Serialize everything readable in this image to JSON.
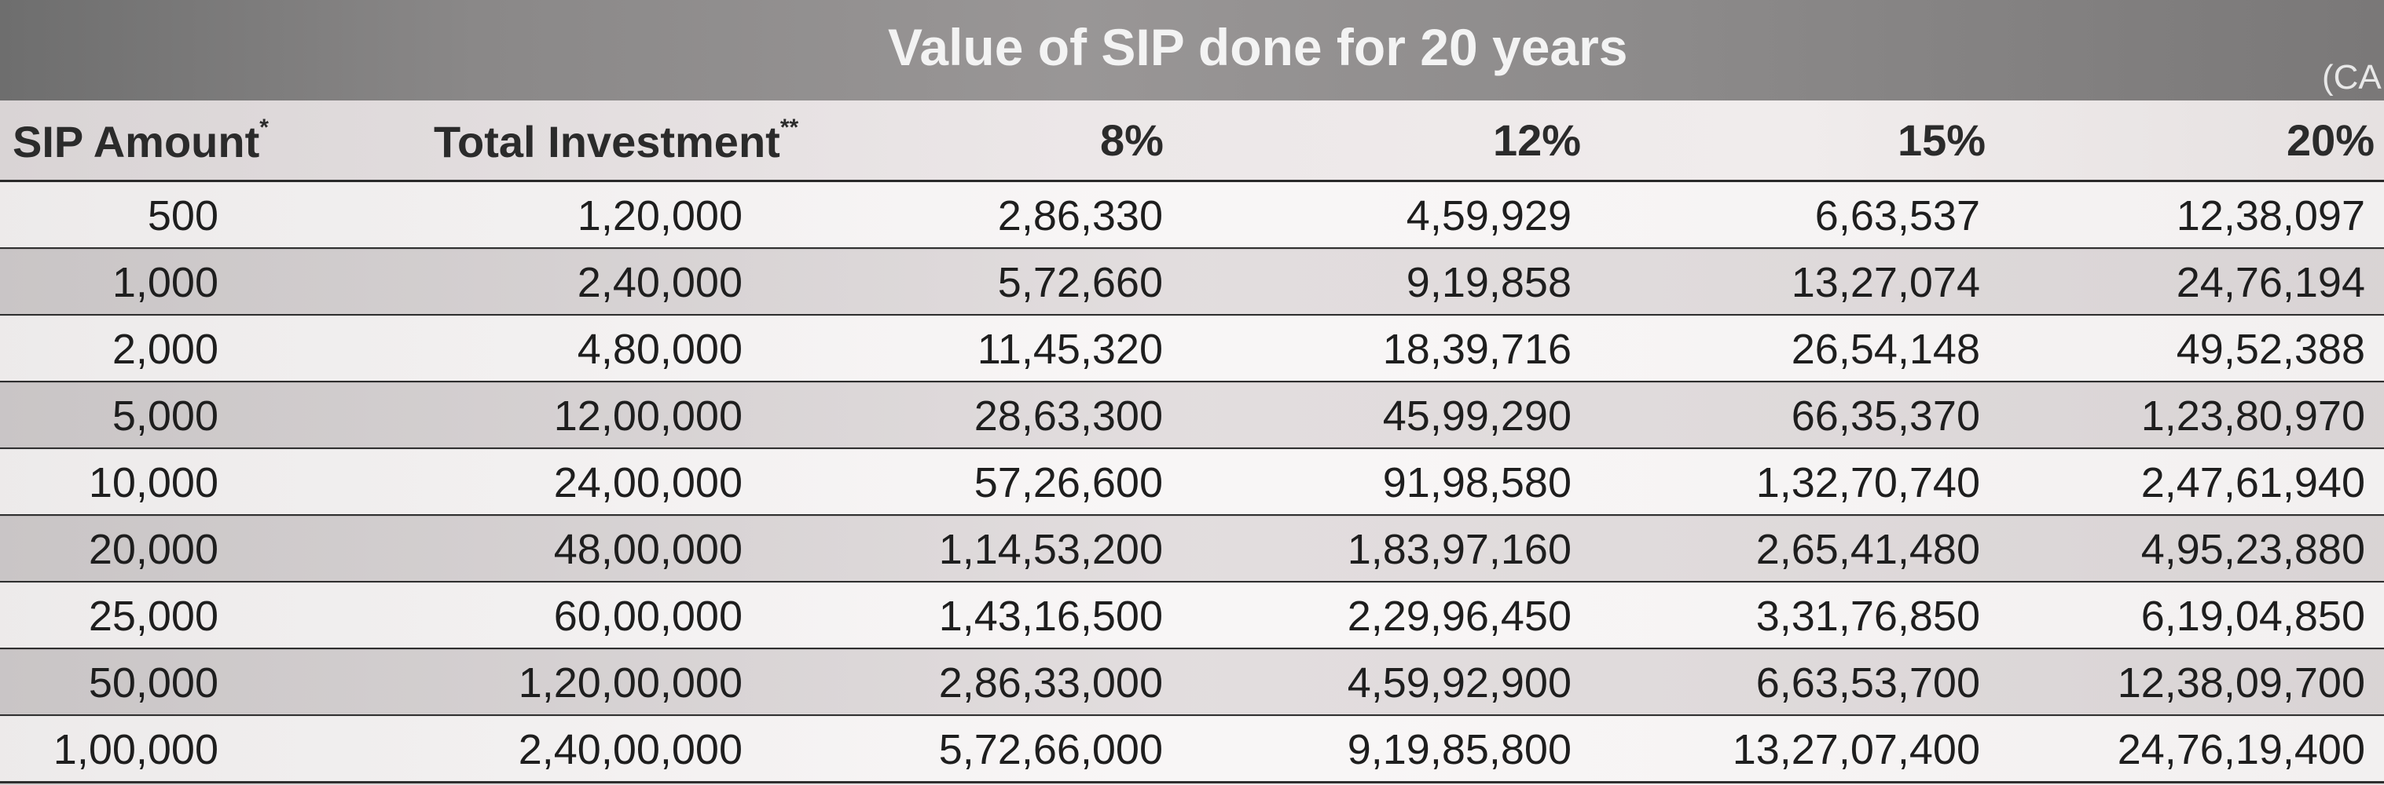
{
  "banner": {
    "title": "Value of SIP done for 20 years",
    "corner_text": "(CA"
  },
  "table": {
    "headers": [
      {
        "label": "SIP Amount",
        "mark": "*"
      },
      {
        "label": "Total Investment",
        "mark": "**"
      },
      {
        "label": "8%",
        "mark": ""
      },
      {
        "label": "12%",
        "mark": ""
      },
      {
        "label": "15%",
        "mark": ""
      },
      {
        "label": "20%",
        "mark": ""
      }
    ],
    "rows": [
      [
        "500",
        "1,20,000",
        "2,86,330",
        "4,59,929",
        "6,63,537",
        "12,38,097"
      ],
      [
        "1,000",
        "2,40,000",
        "5,72,660",
        "9,19,858",
        "13,27,074",
        "24,76,194"
      ],
      [
        "2,000",
        "4,80,000",
        "11,45,320",
        "18,39,716",
        "26,54,148",
        "49,52,388"
      ],
      [
        "5,000",
        "12,00,000",
        "28,63,300",
        "45,99,290",
        "66,35,370",
        "1,23,80,970"
      ],
      [
        "10,000",
        "24,00,000",
        "57,26,600",
        "91,98,580",
        "1,32,70,740",
        "2,47,61,940"
      ],
      [
        "20,000",
        "48,00,000",
        "1,14,53,200",
        "1,83,97,160",
        "2,65,41,480",
        "4,95,23,880"
      ],
      [
        "25,000",
        "60,00,000",
        "1,43,16,500",
        "2,29,96,450",
        "3,31,76,850",
        "6,19,04,850"
      ],
      [
        "50,000",
        "1,20,00,000",
        "2,86,33,000",
        "4,59,92,900",
        "6,63,53,700",
        "12,38,09,700"
      ],
      [
        "1,00,000",
        "2,40,00,000",
        "5,72,66,000",
        "9,19,85,800",
        "13,27,07,400",
        "24,76,19,400"
      ]
    ]
  }
}
